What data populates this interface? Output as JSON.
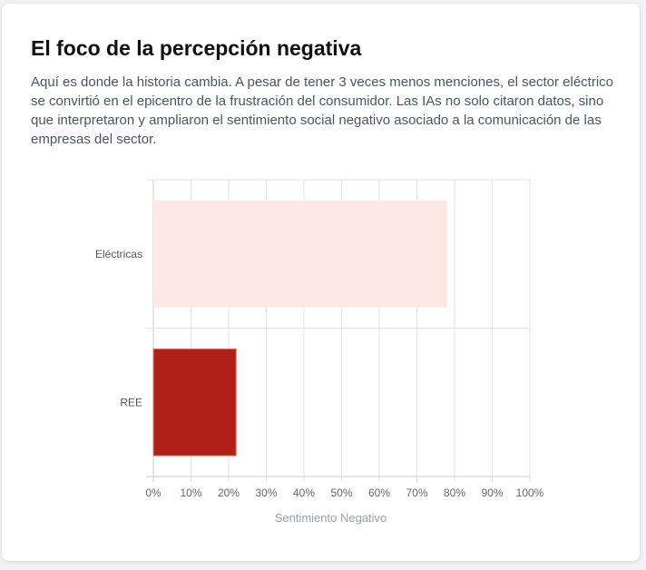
{
  "header": {
    "title": "El foco de la percepción negativa",
    "description": "Aquí es donde la historia cambia. A pesar de tener 3 veces menos menciones, el sector eléctrico se convirtió en el epicentro de la frustración del consumidor. Las IAs no solo citaron datos, sino que interpretaron y ampliaron el sentimiento social negativo asociado a la comunicación de las empresas del sector."
  },
  "chart_data": {
    "type": "bar",
    "orientation": "horizontal",
    "categories": [
      "Eléctricas",
      "REE"
    ],
    "values": [
      78,
      22
    ],
    "colors": [
      "#fde8e6",
      "#b02016"
    ],
    "xlabel": "Sentimiento Negativo",
    "ylabel": "",
    "xlim": [
      0,
      100
    ],
    "xticks": [
      "0%",
      "10%",
      "20%",
      "30%",
      "40%",
      "50%",
      "60%",
      "70%",
      "80%",
      "90%",
      "100%"
    ],
    "grid": true,
    "legend": "none"
  }
}
